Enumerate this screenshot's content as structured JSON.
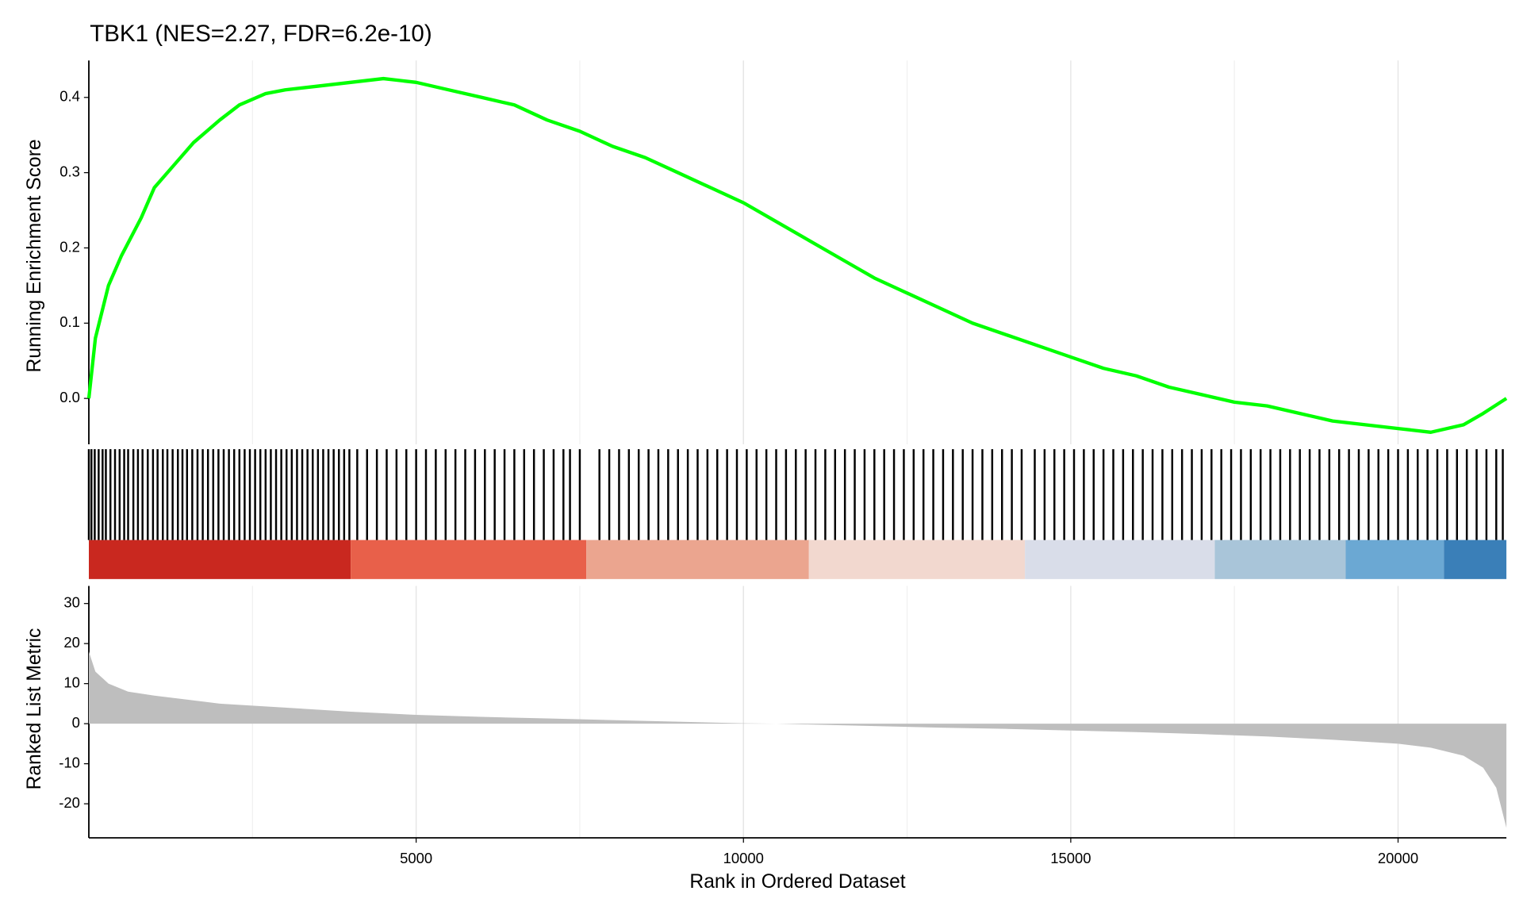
{
  "chart_data": [
    {
      "type": "line",
      "title": "TBK1 (NES=2.27, FDR=6.2e-10)",
      "ylabel": "Running Enrichment Score",
      "color": "#00ff00",
      "x": [
        0,
        100,
        300,
        500,
        800,
        1000,
        1300,
        1600,
        2000,
        2300,
        2700,
        3000,
        3500,
        4000,
        4500,
        5000,
        5500,
        6000,
        6500,
        7000,
        7500,
        8000,
        8500,
        9000,
        9500,
        10000,
        10500,
        11000,
        11500,
        12000,
        12500,
        13000,
        13500,
        14000,
        14500,
        15000,
        15500,
        16000,
        16500,
        17000,
        17500,
        18000,
        18500,
        19000,
        19500,
        20000,
        20500,
        21000,
        21300,
        21655
      ],
      "values": [
        0,
        0.08,
        0.15,
        0.19,
        0.24,
        0.28,
        0.31,
        0.34,
        0.37,
        0.39,
        0.405,
        0.41,
        0.415,
        0.42,
        0.425,
        0.42,
        0.41,
        0.4,
        0.39,
        0.37,
        0.355,
        0.335,
        0.32,
        0.3,
        0.28,
        0.26,
        0.235,
        0.21,
        0.185,
        0.16,
        0.14,
        0.12,
        0.1,
        0.085,
        0.07,
        0.055,
        0.04,
        0.03,
        0.015,
        0.005,
        -0.005,
        -0.01,
        -0.02,
        -0.03,
        -0.035,
        -0.04,
        -0.045,
        -0.035,
        -0.02,
        0.0
      ],
      "xlim": [
        0,
        21655
      ],
      "ylim": [
        -0.061,
        0.449
      ],
      "yticks": [
        {
          "value": 0,
          "label": "0.0"
        },
        0.1,
        0.2,
        0.3,
        0.4
      ],
      "xticks": [
        5000,
        10000,
        15000,
        20000
      ],
      "x_minor_ticks": [
        2500,
        7500,
        12500,
        17500
      ],
      "grid": true
    },
    {
      "type": "rug",
      "color": "#000000",
      "xlim": [
        0,
        21655
      ],
      "x": [
        0,
        40,
        90,
        150,
        210,
        260,
        330,
        400,
        470,
        540,
        600,
        680,
        750,
        820,
        900,
        980,
        1050,
        1130,
        1200,
        1280,
        1360,
        1430,
        1500,
        1580,
        1660,
        1740,
        1820,
        1900,
        1980,
        2060,
        2140,
        2220,
        2300,
        2380,
        2460,
        2540,
        2620,
        2700,
        2780,
        2860,
        2940,
        3020,
        3100,
        3180,
        3260,
        3340,
        3420,
        3500,
        3580,
        3660,
        3740,
        3820,
        3900,
        3980,
        4100,
        4250,
        4400,
        4550,
        4700,
        4850,
        5000,
        5150,
        5300,
        5450,
        5600,
        5750,
        5900,
        6050,
        6200,
        6350,
        6500,
        6650,
        6800,
        6950,
        7100,
        7250,
        7350,
        7500,
        7800,
        7950,
        8100,
        8250,
        8400,
        8550,
        8700,
        8850,
        9000,
        9150,
        9300,
        9450,
        9600,
        9750,
        9900,
        10050,
        10200,
        10350,
        10500,
        10650,
        10800,
        10950,
        11100,
        11250,
        11400,
        11550,
        11700,
        11850,
        12000,
        12150,
        12300,
        12450,
        12600,
        12750,
        12900,
        13050,
        13200,
        13350,
        13500,
        13650,
        13800,
        13950,
        14100,
        14250,
        14450,
        14600,
        14750,
        14900,
        15050,
        15200,
        15350,
        15500,
        15650,
        15800,
        15950,
        16100,
        16250,
        16400,
        16550,
        16700,
        16850,
        17000,
        17150,
        17300,
        17450,
        17600,
        17750,
        17900,
        18050,
        18200,
        18350,
        18500,
        18650,
        18800,
        18950,
        19100,
        19250,
        19400,
        19550,
        19700,
        19850,
        20000,
        20150,
        20300,
        20450,
        20600,
        20750,
        20900,
        21050,
        21200,
        21350,
        21500,
        21600
      ],
      "bands": [
        {
          "start": 0,
          "end": 4000,
          "color": "#c9281f"
        },
        {
          "start": 4000,
          "end": 7600,
          "color": "#e8604a"
        },
        {
          "start": 7600,
          "end": 11000,
          "color": "#eba58f"
        },
        {
          "start": 11000,
          "end": 14300,
          "color": "#f2d8cf"
        },
        {
          "start": 14300,
          "end": 17200,
          "color": "#d9dde9"
        },
        {
          "start": 17200,
          "end": 19200,
          "color": "#a9c5d9"
        },
        {
          "start": 19200,
          "end": 20700,
          "color": "#6ba8d3"
        },
        {
          "start": 20700,
          "end": 21655,
          "color": "#3a7fb8"
        }
      ]
    },
    {
      "type": "area",
      "ylabel": "Ranked List Metric",
      "xlabel": "Rank in Ordered Dataset",
      "color": "#bebebe",
      "x": [
        0,
        100,
        300,
        600,
        1000,
        2000,
        3000,
        4000,
        5000,
        6000,
        7000,
        8000,
        9000,
        10000,
        10500,
        11000,
        12000,
        13000,
        14000,
        15000,
        16000,
        17000,
        18000,
        19000,
        20000,
        20500,
        21000,
        21300,
        21500,
        21655
      ],
      "values": [
        18,
        13,
        10,
        8,
        7,
        5,
        4,
        3,
        2.2,
        1.7,
        1.3,
        0.9,
        0.5,
        0.1,
        0,
        -0.2,
        -0.6,
        -1,
        -1.3,
        -1.7,
        -2.1,
        -2.6,
        -3.2,
        -4,
        -5,
        -6,
        -8,
        -11,
        -16,
        -26
      ],
      "xlim": [
        0,
        21655
      ],
      "ylim": [
        -28.5,
        34.4
      ],
      "yticks": [
        -20,
        -10,
        0,
        10,
        20,
        30
      ],
      "xticks": [
        5000,
        10000,
        15000,
        20000
      ],
      "x_minor_ticks": [
        2500,
        7500,
        12500,
        17500
      ],
      "grid": true
    }
  ]
}
